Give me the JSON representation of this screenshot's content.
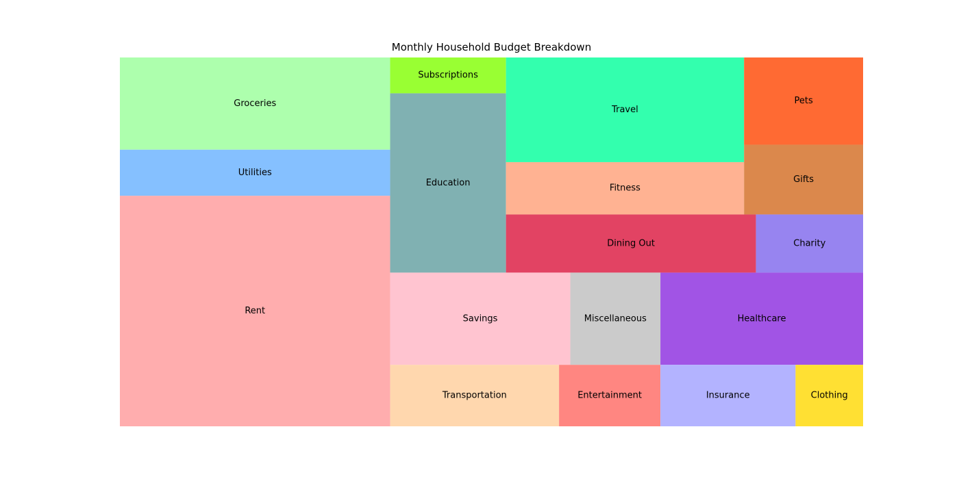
{
  "chart_data": {
    "type": "treemap",
    "title": "Monthly Household Budget Breakdown",
    "items": [
      {
        "label": "Rent",
        "value": 1500,
        "color": "#FFADAE"
      },
      {
        "label": "Utilities",
        "value": 300,
        "color": "#85C0FF"
      },
      {
        "label": "Groceries",
        "value": 600,
        "color": "#ADFFAD"
      },
      {
        "label": "Education",
        "value": 500,
        "color": "#80B1B2"
      },
      {
        "label": "Subscriptions",
        "value": 100,
        "color": "#99FF33"
      },
      {
        "label": "Savings",
        "value": 400,
        "color": "#FFC4D0"
      },
      {
        "label": "Miscellaneous",
        "value": 200,
        "color": "#CBCBCB"
      },
      {
        "label": "Healthcare",
        "value": 450,
        "color": "#A154E5"
      },
      {
        "label": "Transportation",
        "value": 250,
        "color": "#FFD7AE"
      },
      {
        "label": "Entertainment",
        "value": 150,
        "color": "#FF8681"
      },
      {
        "label": "Insurance",
        "value": 200,
        "color": "#B3B3FF"
      },
      {
        "label": "Clothing",
        "value": 100,
        "color": "#FFE033"
      },
      {
        "label": "Travel",
        "value": 600,
        "color": "#33FFAE"
      },
      {
        "label": "Fitness",
        "value": 300,
        "color": "#FFB292"
      },
      {
        "label": "Dining Out",
        "value": 350,
        "color": "#E24363"
      },
      {
        "label": "Charity",
        "value": 150,
        "color": "#9784F0"
      },
      {
        "label": "Pets",
        "value": 250,
        "color": "#FF6A33"
      },
      {
        "label": "Gifts",
        "value": 200,
        "color": "#DB884C"
      }
    ]
  }
}
